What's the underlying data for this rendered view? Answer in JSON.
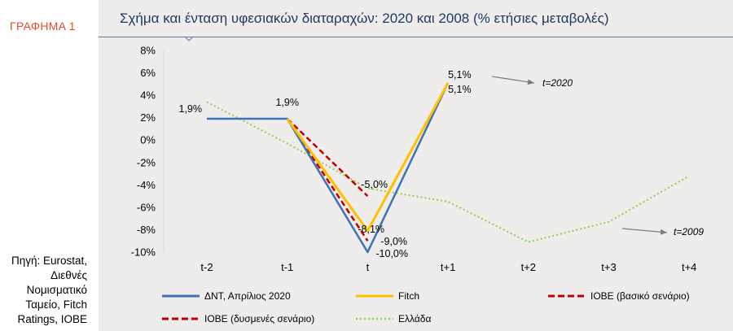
{
  "figure_label": "ΓΡΑΦΗΜΑ 1",
  "source_text": "Πηγή: Eurostat, Διεθνές Νομισματικό Ταμείο, Fitch Ratings, ΙΟΒΕ",
  "colors": {
    "dnt": "#3d72b6",
    "fitch": "#ffc000",
    "iobe": "#c00000",
    "greece": "#92d050",
    "title": "#1f3864",
    "figure_label": "#e8492f",
    "arrow": "#7f7f7f"
  },
  "chart_data": {
    "type": "line",
    "title": "Σχήμα και ένταση υφεσιακών διαταραχών: 2020 και 2008 (% ετήσιες μεταβολές)",
    "categories": [
      "t-2",
      "t-1",
      "t",
      "t+1",
      "t+2",
      "t+3",
      "t+4"
    ],
    "ylim": [
      -10,
      8
    ],
    "ytick_step": 2,
    "ytick_labels": [
      "8%",
      "6%",
      "4%",
      "2%",
      "0%",
      "-2%",
      "-4%",
      "-6%",
      "-8%",
      "-10%"
    ],
    "series": [
      {
        "key": "dnt",
        "name": "ΔΝΤ, Απρίλιος 2020",
        "style": "solid",
        "values": [
          1.9,
          1.9,
          -10.0,
          5.1,
          null,
          null,
          null
        ]
      },
      {
        "key": "fitch",
        "name": "Fitch",
        "style": "solid",
        "values": [
          null,
          1.9,
          -8.1,
          5.1,
          null,
          null,
          null
        ]
      },
      {
        "key": "iobe_base",
        "name": "ΙΟΒΕ (βασικό σενάριο)",
        "style": "dashed",
        "values": [
          null,
          1.9,
          -5.0,
          null,
          null,
          null,
          null
        ]
      },
      {
        "key": "iobe_adverse",
        "name": "ΙΟΒΕ (δυσμενές σενάριο)",
        "style": "dashed",
        "values": [
          null,
          1.9,
          -9.0,
          null,
          null,
          null,
          null
        ]
      },
      {
        "key": "greece",
        "name": "Ελλάδα",
        "style": "dotted",
        "values": [
          3.4,
          -0.3,
          -4.3,
          -5.5,
          -9.1,
          -7.3,
          -3.2
        ]
      }
    ],
    "data_labels": [
      {
        "text": "1,9%",
        "category": "t-2",
        "value": 1.9
      },
      {
        "text": "1,9%",
        "category": "t-1",
        "value": 1.9
      },
      {
        "text": "-5,0%",
        "category": "t",
        "value": -5.0
      },
      {
        "text": "-8,1%",
        "category": "t",
        "value": -8.1
      },
      {
        "text": "-9,0%",
        "category": "t",
        "value": -9.0
      },
      {
        "text": "-10,0%",
        "category": "t",
        "value": -10.0
      },
      {
        "text": "5,1%",
        "category": "t+1",
        "value": 5.1
      },
      {
        "text": "5,1%",
        "category": "t+1",
        "value": 5.1
      }
    ],
    "annotations": [
      {
        "text": "t=2020"
      },
      {
        "text": "t=2009"
      }
    ]
  }
}
